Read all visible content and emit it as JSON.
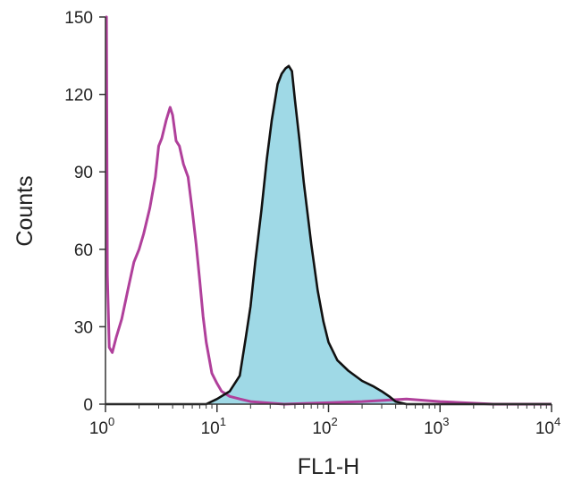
{
  "chart_data": {
    "type": "area",
    "xlabel": "FL1-H",
    "ylabel": "Counts",
    "x_scale": "log",
    "xlim": [
      1,
      10000
    ],
    "ylim": [
      0,
      150
    ],
    "y_ticks": [
      0,
      30,
      60,
      90,
      120,
      150
    ],
    "x_ticks": [
      {
        "value": 1,
        "base": "10",
        "exp": "0"
      },
      {
        "value": 10,
        "base": "10",
        "exp": "1"
      },
      {
        "value": 100,
        "base": "10",
        "exp": "2"
      },
      {
        "value": 1000,
        "base": "10",
        "exp": "3"
      },
      {
        "value": 10000,
        "base": "10",
        "exp": "4"
      }
    ],
    "grid": false,
    "series": [
      {
        "color": "#b0409b",
        "filled": false,
        "points": [
          [
            1.0,
            150
          ],
          [
            1.02,
            150
          ],
          [
            1.04,
            50
          ],
          [
            1.08,
            22
          ],
          [
            1.15,
            20
          ],
          [
            1.25,
            26
          ],
          [
            1.4,
            33
          ],
          [
            1.6,
            45
          ],
          [
            1.8,
            55
          ],
          [
            2.0,
            60
          ],
          [
            2.2,
            66
          ],
          [
            2.5,
            76
          ],
          [
            2.8,
            88
          ],
          [
            3.0,
            100
          ],
          [
            3.2,
            103
          ],
          [
            3.5,
            110
          ],
          [
            3.8,
            115
          ],
          [
            4.0,
            112
          ],
          [
            4.3,
            102
          ],
          [
            4.6,
            100
          ],
          [
            5.0,
            93
          ],
          [
            5.5,
            88
          ],
          [
            6.0,
            75
          ],
          [
            6.5,
            62
          ],
          [
            7.0,
            48
          ],
          [
            7.5,
            34
          ],
          [
            8.0,
            24
          ],
          [
            9.0,
            12
          ],
          [
            10.0,
            8
          ],
          [
            11.0,
            5
          ],
          [
            13.0,
            3
          ],
          [
            16.0,
            2
          ],
          [
            20.0,
            1
          ],
          [
            40.0,
            0
          ],
          [
            200.0,
            1
          ],
          [
            500.0,
            2
          ],
          [
            1000.0,
            1
          ],
          [
            3000.0,
            0
          ],
          [
            10000.0,
            0
          ]
        ]
      },
      {
        "color": "#9fd9e6",
        "filled": true,
        "points": [
          [
            1.0,
            0
          ],
          [
            5.0,
            0
          ],
          [
            8.0,
            0
          ],
          [
            10.0,
            2
          ],
          [
            13.0,
            5
          ],
          [
            16.0,
            11
          ],
          [
            18.0,
            25
          ],
          [
            20.0,
            38
          ],
          [
            22.0,
            55
          ],
          [
            25.0,
            75
          ],
          [
            28.0,
            95
          ],
          [
            31.0,
            110
          ],
          [
            35.0,
            124
          ],
          [
            38.0,
            128
          ],
          [
            41.0,
            130
          ],
          [
            44.0,
            131
          ],
          [
            47.0,
            129
          ],
          [
            50.0,
            118
          ],
          [
            55.0,
            102
          ],
          [
            60.0,
            86
          ],
          [
            70.0,
            62
          ],
          [
            80.0,
            44
          ],
          [
            90.0,
            32
          ],
          [
            100.0,
            24
          ],
          [
            120.0,
            17
          ],
          [
            150.0,
            13
          ],
          [
            200.0,
            9
          ],
          [
            250.0,
            7
          ],
          [
            300.0,
            5
          ],
          [
            350.0,
            3
          ],
          [
            400.0,
            1
          ],
          [
            500.0,
            0
          ],
          [
            10000.0,
            0
          ]
        ]
      }
    ]
  }
}
